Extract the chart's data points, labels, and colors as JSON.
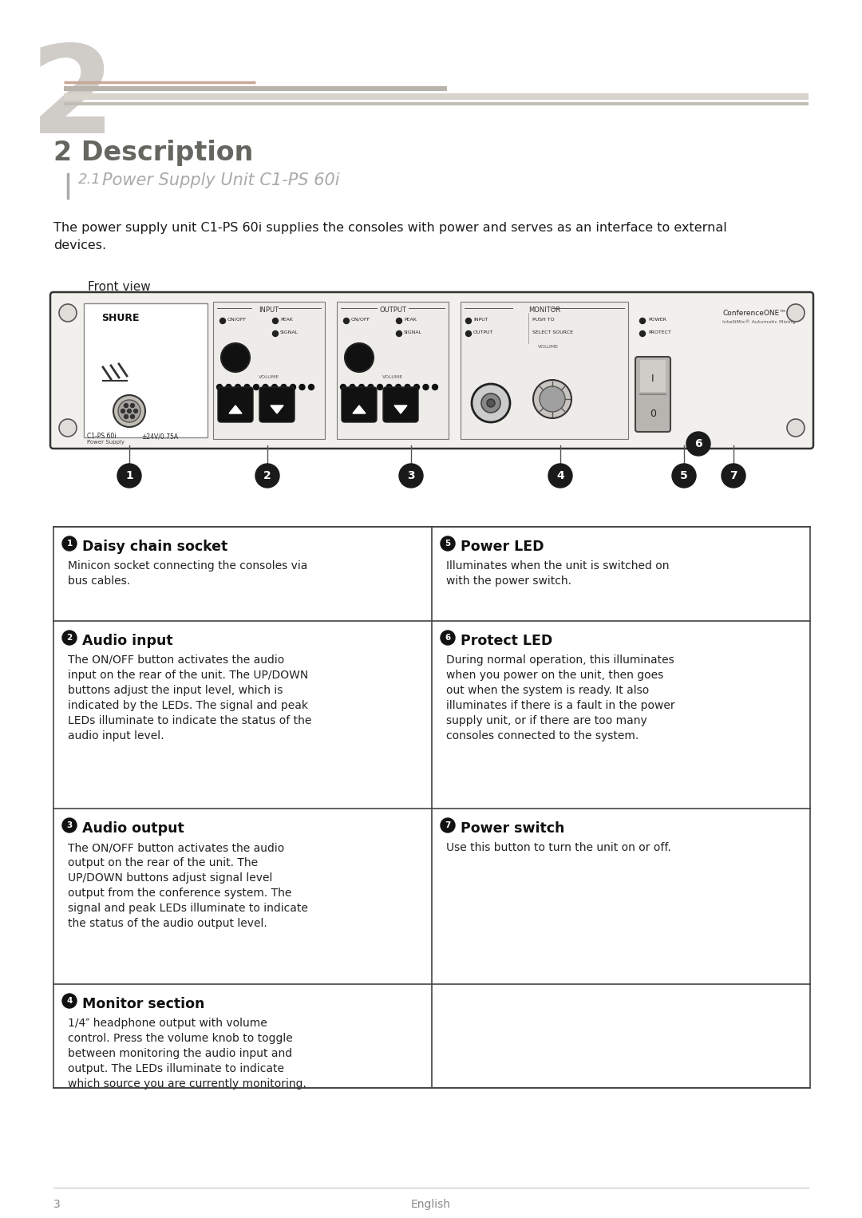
{
  "bg_color": "#ffffff",
  "page_number": "3",
  "page_language": "English",
  "chapter_number": "2",
  "section_title": "2 Description",
  "section_title_color": "#888880",
  "subsection_number": "2.1",
  "subsection_title": "Power Supply Unit C1-PS 60i",
  "body_text_line1": "The power supply unit C1-PS 60i supplies the consoles with power and serves as an interface to external",
  "body_text_line2": "devices.",
  "front_view_label": "Front view",
  "items": [
    {
      "num": "1",
      "title": "Daisy chain socket",
      "body": "Minicon socket connecting the consoles via\nbus cables."
    },
    {
      "num": "2",
      "title": "Audio input",
      "body": "The ON/OFF button activates the audio\ninput on the rear of the unit. The UP/DOWN\nbuttons adjust the input level, which is\nindicated by the LEDs. The signal and peak\nLEDs illuminate to indicate the status of the\naudio input level."
    },
    {
      "num": "3",
      "title": "Audio output",
      "body": "The ON/OFF button activates the audio\noutput on the rear of the unit. The\nUP/DOWN buttons adjust signal level\noutput from the conference system. The\nsignal and peak LEDs illuminate to indicate\nthe status of the audio output level."
    },
    {
      "num": "4",
      "title": "Monitor section",
      "body": "1/4″ headphone output with volume\ncontrol. Press the volume knob to toggle\nbetween monitoring the audio input and\noutput. The LEDs illuminate to indicate\nwhich source you are currently monitoring."
    },
    {
      "num": "5",
      "title": "Power LED",
      "body": "Illuminates when the unit is switched on\nwith the power switch."
    },
    {
      "num": "6",
      "title": "Protect LED",
      "body": "During normal operation, this illuminates\nwhen you power on the unit, then goes\nout when the system is ready. It also\nilluminates if there is a fault in the power\nsupply unit, or if there are too many\nconsoles connected to the system."
    },
    {
      "num": "7",
      "title": "Power switch",
      "body": "Use this button to turn the unit on or off."
    }
  ]
}
